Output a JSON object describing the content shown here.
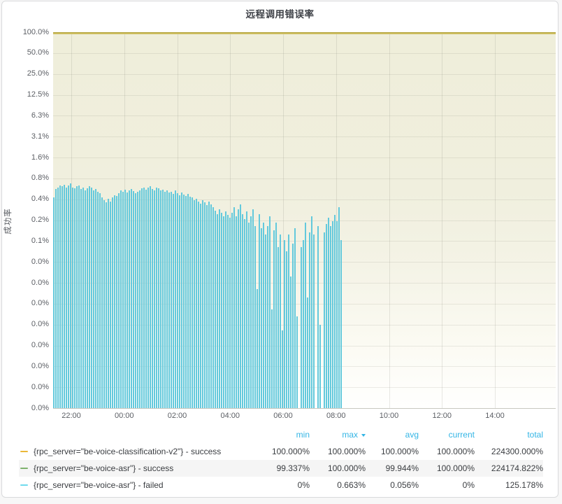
{
  "panel": {
    "title": "远程调用错误率"
  },
  "chart_data": {
    "type": "bar",
    "title": "远程调用错误率",
    "xlabel": "",
    "ylabel": "成功率",
    "y_scale": "log2",
    "y_tick_labels": [
      "100.0%",
      "50.0%",
      "25.0%",
      "12.5%",
      "6.3%",
      "3.1%",
      "1.6%",
      "0.8%",
      "0.4%",
      "0.2%",
      "0.1%",
      "0.0%",
      "0.0%",
      "0.0%",
      "0.0%",
      "0.0%",
      "0.0%",
      "0.0%",
      "0.0%"
    ],
    "y_top_value": 100,
    "x_tick_labels": [
      "22:00",
      "00:00",
      "02:00",
      "04:00",
      "06:00",
      "08:00",
      "10:00",
      "12:00",
      "14:00"
    ],
    "grid": true,
    "legend_position": "bottom-table",
    "series": [
      {
        "name": "{rpc_server=\"be-voice-classification-v2\"} - success",
        "type": "line",
        "color": "#EAB839",
        "constant_value_pct": 100
      },
      {
        "name": "{rpc_server=\"be-voice-asr\"} - success",
        "type": "line",
        "color": "#7EB26D",
        "constant_value_pct": 100
      },
      {
        "name": "{rpc_server=\"be-voice-asr\"} - failed",
        "type": "bar",
        "color": "#63C9DC",
        "values_pct": [
          0.42,
          0.55,
          0.58,
          0.62,
          0.6,
          0.63,
          0.57,
          0.61,
          0.66,
          0.58,
          0.56,
          0.6,
          0.62,
          0.55,
          0.58,
          0.52,
          0.56,
          0.6,
          0.57,
          0.53,
          0.55,
          0.5,
          0.48,
          0.42,
          0.38,
          0.35,
          0.4,
          0.36,
          0.42,
          0.45,
          0.44,
          0.48,
          0.52,
          0.5,
          0.54,
          0.49,
          0.53,
          0.55,
          0.51,
          0.48,
          0.5,
          0.52,
          0.56,
          0.58,
          0.54,
          0.57,
          0.6,
          0.55,
          0.53,
          0.58,
          0.56,
          0.52,
          0.54,
          0.5,
          0.53,
          0.49,
          0.5,
          0.47,
          0.52,
          0.48,
          0.45,
          0.49,
          0.46,
          0.44,
          0.47,
          0.43,
          0.42,
          0.38,
          0.4,
          0.36,
          0.34,
          0.38,
          0.35,
          0.32,
          0.36,
          0.33,
          0.3,
          0.27,
          0.24,
          0.28,
          0.25,
          0.22,
          0.26,
          0.23,
          0.21,
          0.25,
          0.3,
          0.22,
          0.28,
          0.33,
          0.24,
          0.2,
          0.26,
          0.18,
          0.22,
          0.28,
          0.16,
          0.02,
          0.24,
          0.15,
          0.18,
          0.12,
          0.16,
          0.22,
          0.01,
          0.14,
          0.18,
          0.08,
          0.12,
          0.005,
          0.1,
          0.07,
          0.12,
          0.03,
          0.09,
          0.15,
          0.008,
          null,
          0.08,
          0.1,
          0.18,
          0.015,
          0.13,
          0.22,
          0.12,
          null,
          0.16,
          0.006,
          null,
          0.13,
          0.17,
          0.21,
          0.16,
          0.19,
          0.23,
          0.19,
          0.3,
          0.1
        ]
      }
    ]
  },
  "legend": {
    "headers": [
      "min",
      "max",
      "avg",
      "current",
      "total"
    ],
    "sort_column": "max",
    "header_color": "#33b5e5",
    "rows": [
      {
        "label": "{rpc_server=\"be-voice-classification-v2\"} - success",
        "color": "#EAB839",
        "min": "100.000%",
        "max": "100.000%",
        "avg": "100.000%",
        "current": "100.000%",
        "total": "224300.000%"
      },
      {
        "label": "{rpc_server=\"be-voice-asr\"} - success",
        "color": "#7EB26D",
        "min": "99.337%",
        "max": "100.000%",
        "avg": "99.944%",
        "current": "100.000%",
        "total": "224174.822%"
      },
      {
        "label": "{rpc_server=\"be-voice-asr\"} - failed",
        "color": "#70DBED",
        "min": "0%",
        "max": "0.663%",
        "avg": "0.056%",
        "current": "0%",
        "total": "125.178%"
      }
    ]
  }
}
